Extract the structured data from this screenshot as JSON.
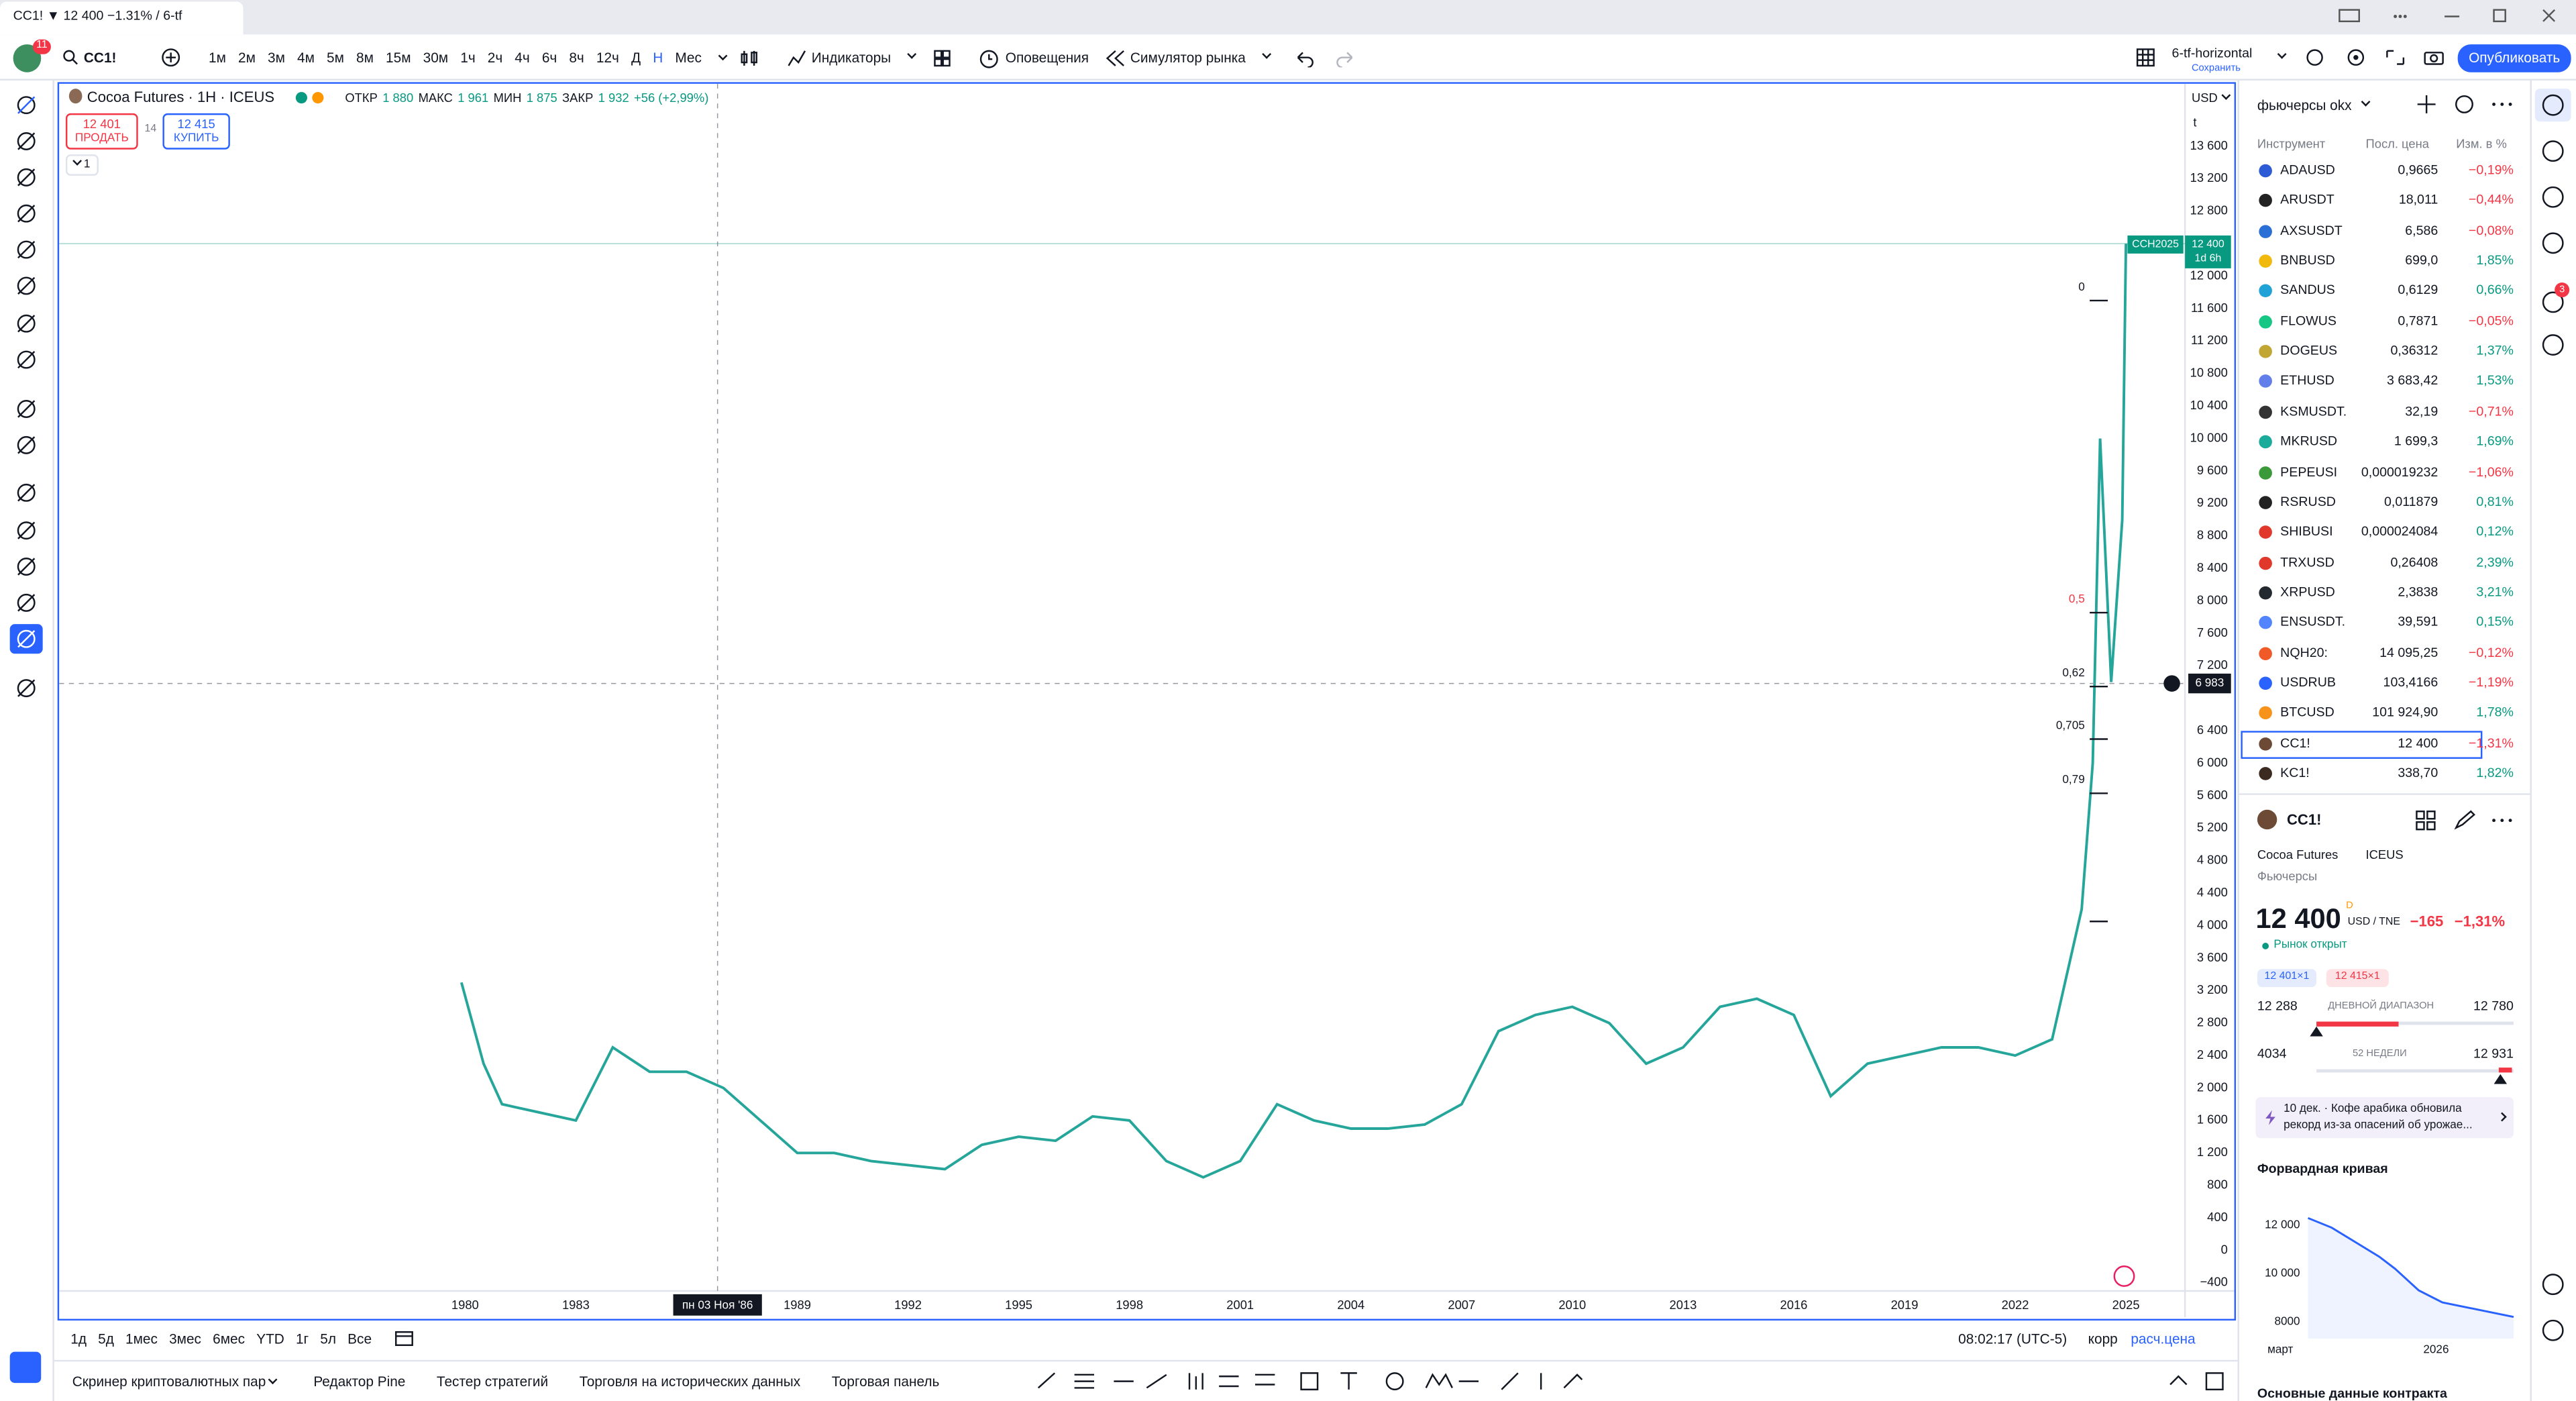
{
  "tab": {
    "title": "CC1! ▼ 12 400 −1.31% / 6-tf"
  },
  "toolbar": {
    "badge": "11",
    "symbol": "CC1!",
    "intervals": [
      "1м",
      "2м",
      "3м",
      "4м",
      "5м",
      "8м",
      "15м",
      "30м",
      "1ч",
      "2ч",
      "4ч",
      "6ч",
      "8ч",
      "12ч",
      "Д",
      "Н",
      "Мес"
    ],
    "indicators": "Индикаторы",
    "alerts": "Оповещения",
    "replay": "Симулятор рынка",
    "layout": "6-tf-horizontal",
    "save": "Сохранить",
    "publish": "Опубликовать"
  },
  "legend": {
    "name": "Cocoa Futures · 1H · ICEUS",
    "open_label": "ОТКР",
    "open": "1 880",
    "high_label": "МАКС",
    "high": "1 961",
    "low_label": "МИН",
    "low": "1 875",
    "close_label": "ЗАКР",
    "close": "1 932",
    "change": "+56 (+2,99%)",
    "sell_price": "12 401",
    "sell": "ПРОДАТЬ",
    "spread": "14",
    "buy_price": "12 415",
    "buy": "КУПИТЬ",
    "indicators_count": "1",
    "currency": "USD",
    "unit": "t"
  },
  "chart_data": [
    {
      "type": "line",
      "color": "#26a69a",
      "x": [
        1979.9,
        1980.5,
        1981,
        1982,
        1983,
        1984,
        1985,
        1986,
        1987,
        1988,
        1989,
        1990,
        1991,
        1992,
        1993,
        1994,
        1995,
        1996,
        1997,
        1998,
        1999,
        2000,
        2001,
        2002,
        2003,
        2004,
        2005,
        2006,
        2007,
        2008,
        2009,
        2010,
        2011,
        2012,
        2013,
        2014,
        2015,
        2016,
        2017,
        2018,
        2019,
        2020,
        2021,
        2022,
        2023,
        2023.8,
        2024.1,
        2024.3,
        2024.6,
        2024.9,
        2025
      ],
      "values": [
        3300,
        2300,
        1800,
        1700,
        1600,
        2500,
        2200,
        2200,
        2000,
        1600,
        1200,
        1200,
        1100,
        1050,
        1000,
        1300,
        1400,
        1350,
        1650,
        1600,
        1100,
        900,
        1100,
        1800,
        1600,
        1500,
        1500,
        1550,
        1800,
        2700,
        2900,
        3000,
        2800,
        2300,
        2500,
        3000,
        3100,
        2900,
        1900,
        2300,
        2400,
        2500,
        2500,
        2400,
        2600,
        4200,
        6000,
        10000,
        7000,
        9000,
        12400
      ],
      "xlim": [
        1969,
        2026.6
      ],
      "xticks": [
        1980,
        1983,
        1986,
        1989,
        1992,
        1995,
        1998,
        2001,
        2004,
        2007,
        2010,
        2013,
        2016,
        2019,
        2022,
        2025
      ],
      "ylim": [
        -500,
        14370
      ],
      "yticks": [
        {
          "value": -400,
          "label": "−400"
        },
        0,
        400,
        800,
        {
          "value": 1200,
          "label": "1 200"
        },
        {
          "value": 1600,
          "label": "1 600"
        },
        {
          "value": 2000,
          "label": "2 000"
        },
        {
          "value": 2400,
          "label": "2 400"
        },
        {
          "value": 2800,
          "label": "2 800"
        },
        {
          "value": 3200,
          "label": "3 200"
        },
        {
          "value": 3600,
          "label": "3 600"
        },
        {
          "value": 4000,
          "label": "4 000"
        },
        {
          "value": 4400,
          "label": "4 400"
        },
        {
          "value": 4800,
          "label": "4 800"
        },
        {
          "value": 5200,
          "label": "5 200"
        },
        {
          "value": 5600,
          "label": "5 600"
        },
        {
          "value": 6000,
          "label": "6 000"
        },
        {
          "value": 6400,
          "label": "6 400"
        },
        {
          "value": 7200,
          "label": "7 200"
        },
        {
          "value": 7600,
          "label": "7 600"
        },
        {
          "value": 8000,
          "label": "8 000"
        },
        {
          "value": 8400,
          "label": "8 400"
        },
        {
          "value": 8800,
          "label": "8 800"
        },
        {
          "value": 9200,
          "label": "9 200"
        },
        {
          "value": 9600,
          "label": "9 600"
        },
        {
          "value": 10000,
          "label": "10 000"
        },
        {
          "value": 10400,
          "label": "10 400"
        },
        {
          "value": 10800,
          "label": "10 800"
        },
        {
          "value": 11200,
          "label": "11 200"
        },
        {
          "value": 11600,
          "label": "11 600"
        },
        {
          "value": 12000,
          "label": "12 000"
        },
        {
          "value": 12800,
          "label": "12 800"
        },
        {
          "value": 13200,
          "label": "13 200"
        },
        {
          "value": 13600,
          "label": "13 600"
        }
      ],
      "grid": false,
      "last_price": {
        "value": 12400,
        "label": "12 400",
        "symbol": "CCH2025",
        "countdown": "1d 6h"
      },
      "crosshair": {
        "y": {
          "value": 6983,
          "label": "6 983"
        },
        "x": {
          "value": 1986.84,
          "label": "пн 03 Ноя '86"
        }
      },
      "annotations": [
        "0",
        "0,5",
        "0,62",
        "0,705",
        "0,79"
      ]
    },
    {
      "type": "line",
      "color": "#2962ff",
      "x": [
        3,
        4.5,
        6,
        7.5,
        8.5,
        10,
        11.5,
        13,
        16
      ],
      "values": [
        12300,
        11900,
        11300,
        10700,
        10200,
        9300,
        8800,
        8600,
        8200
      ],
      "xlim": [
        0,
        16
      ],
      "xticks": [
        {
          "value": 1.25,
          "label": "март"
        },
        {
          "value": 11.1,
          "label": "2026"
        }
      ],
      "ylim": [
        7300,
        12750
      ],
      "yticks": [
        8000,
        {
          "value": 10000,
          "label": "10 000"
        },
        {
          "value": 12000,
          "label": "12 000"
        }
      ]
    }
  ],
  "range_bar": {
    "ranges": [
      "1д",
      "5д",
      "1мес",
      "3мес",
      "6мес",
      "YTD",
      "1г",
      "5л",
      "Все"
    ],
    "time": "08:02:17 (UTC-5)",
    "adj": "корр",
    "settle": "расч.цена"
  },
  "bottom_tabs": [
    "Скринер криптовалютных пар",
    "Редактор Pine",
    "Тестер стратегий",
    "Торговля на исторических данных",
    "Торговая панель"
  ],
  "watchlist": {
    "title": "фьючерсы okx",
    "columns": [
      "Инструмент",
      "Посл. цена",
      "Изм. в %"
    ],
    "rows": [
      {
        "symbol": "ADAUSD",
        "last": "0,9665",
        "change": "−0,19%"
      },
      {
        "symbol": "ARUSDT",
        "last": "18,011",
        "change": "−0,44%"
      },
      {
        "symbol": "AXSUSDT",
        "last": "6,586",
        "change": "−0,08%"
      },
      {
        "symbol": "BNBUSD",
        "last": "699,0",
        "change": "1,85%"
      },
      {
        "symbol": "SANDUS",
        "last": "0,6129",
        "change": "0,66%"
      },
      {
        "symbol": "FLOWUS",
        "last": "0,7871",
        "change": "−0,05%"
      },
      {
        "symbol": "DOGEUS",
        "last": "0,36312",
        "change": "1,37%"
      },
      {
        "symbol": "ETHUSD",
        "last": "3 683,42",
        "change": "1,53%"
      },
      {
        "symbol": "KSMUSDT.F",
        "last": "32,19",
        "change": "−0,71%"
      },
      {
        "symbol": "MKRUSD",
        "last": "1 699,3",
        "change": "1,69%"
      },
      {
        "symbol": "PEPEUSI",
        "last": "0,000019232",
        "change": "−1,06%"
      },
      {
        "symbol": "RSRUSD",
        "last": "0,011879",
        "change": "0,81%"
      },
      {
        "symbol": "SHIBUSI",
        "last": "0,000024084",
        "change": "0,12%"
      },
      {
        "symbol": "TRXUSD",
        "last": "0,26408",
        "change": "2,39%"
      },
      {
        "symbol": "XRPUSD",
        "last": "2,3838",
        "change": "3,21%"
      },
      {
        "symbol": "ENSUSDT.F",
        "last": "39,591",
        "change": "0,15%"
      },
      {
        "symbol": "NQH20:",
        "last": "14 095,25",
        "change": "−0,12%"
      },
      {
        "symbol": "USDRUB",
        "last": "103,4166",
        "change": "−1,19%"
      },
      {
        "symbol": "BTCUSD",
        "last": "101 924,90",
        "change": "1,78%"
      },
      {
        "symbol": "CC1!",
        "last": "12 400",
        "change": "−1,31%"
      },
      {
        "symbol": "KC1!",
        "last": "338,70",
        "change": "1,82%"
      }
    ]
  },
  "details": {
    "symbol": "CC1!",
    "name": "Cocoa Futures",
    "exchange": "ICEUS",
    "kind": "Фьючерсы",
    "price": "12 400",
    "flag": "D",
    "currency": "USD / TNE",
    "change": "−165",
    "change_pct": "−1,31%",
    "status": "Рынок открыт",
    "bid": "12 401×1",
    "ask": "12 415×1",
    "day_low": "12 288",
    "day_label": "ДНЕВНОЙ ДИАПАЗОН",
    "day_high": "12 780",
    "week_low": "4034",
    "week_label": "52 НЕДЕЛИ",
    "week_high": "12 931",
    "news": "10 дек.  ·  Кофе арабика обновила рекорд из-за опасений об урожае...",
    "forward_title": "Форвардная кривая",
    "contract": "Основные данные контракта"
  },
  "badges": {
    "chat": "3"
  }
}
